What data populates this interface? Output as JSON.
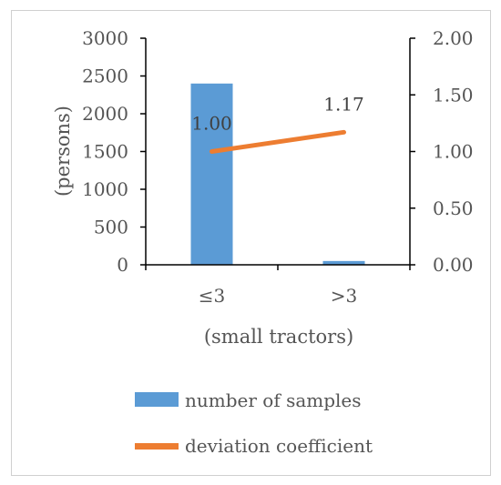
{
  "chart_data": {
    "type": "bar",
    "categories": [
      "≤3",
      ">3"
    ],
    "series": [
      {
        "name": "number of samples",
        "type": "bar",
        "axis": "left",
        "values": [
          2400,
          50
        ],
        "color": "#5B9BD5"
      },
      {
        "name": "deviation coefficient",
        "type": "line",
        "axis": "right",
        "values": [
          1.0,
          1.17
        ],
        "labels": [
          "1.00",
          "1.17"
        ],
        "color": "#ED7D31"
      }
    ],
    "xlabel": "(small tractors)",
    "ylabel": "(persons)",
    "ylim": [
      0,
      3000
    ],
    "y_ticks": [
      "0",
      "500",
      "1000",
      "1500",
      "2000",
      "2500",
      "3000"
    ],
    "y2lim": [
      0,
      2
    ],
    "y2_ticks": [
      "0.00",
      "0.50",
      "1.00",
      "1.50",
      "2.00"
    ],
    "grid": false,
    "legend_position": "bottom"
  }
}
